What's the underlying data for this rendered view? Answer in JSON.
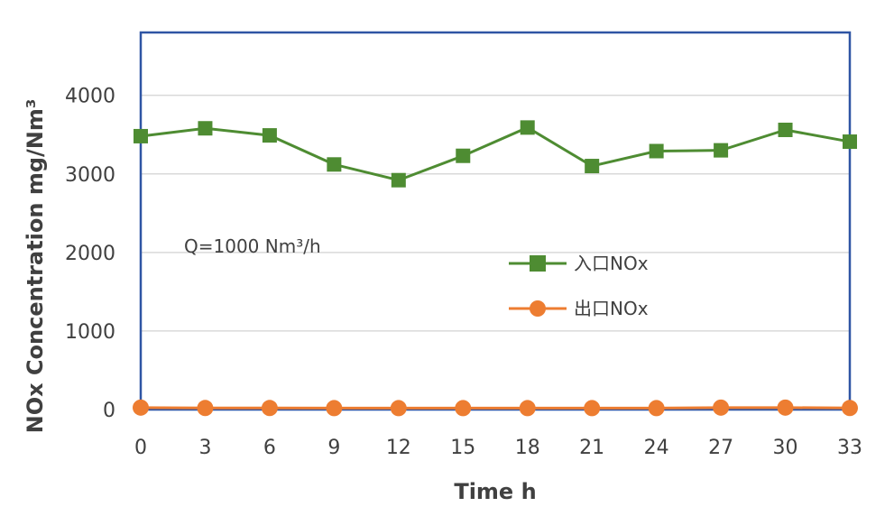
{
  "chart_data": {
    "type": "line",
    "xlabel": "Time h",
    "ylabel": "NOx Concentration mg/Nm³",
    "x": [
      0,
      3,
      6,
      9,
      12,
      15,
      18,
      21,
      24,
      27,
      30,
      33
    ],
    "ylim": [
      0,
      4800
    ],
    "yticks": [
      0,
      1000,
      2000,
      3000,
      4000
    ],
    "grid": true,
    "legend_position": "center-right",
    "annotation": "Q=1000 Nm³/h",
    "series": [
      {
        "name": "入口NOx",
        "color": "#4e8c32",
        "marker": "square",
        "values": [
          3480,
          3580,
          3490,
          3120,
          2920,
          3230,
          3590,
          3100,
          3290,
          3300,
          3560,
          3410
        ]
      },
      {
        "name": "出口NOx",
        "color": "#ed7d31",
        "marker": "circle",
        "values": [
          25,
          20,
          20,
          18,
          18,
          18,
          18,
          18,
          18,
          25,
          25,
          20
        ]
      }
    ]
  }
}
